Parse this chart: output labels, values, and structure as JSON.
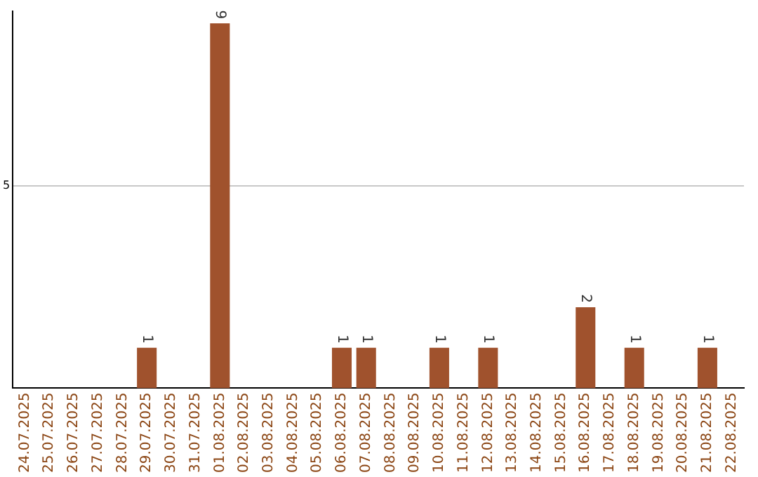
{
  "chart_data": {
    "type": "bar",
    "categories": [
      "24.07.2025",
      "25.07.2025",
      "26.07.2025",
      "27.07.2025",
      "28.07.2025",
      "29.07.2025",
      "30.07.2025",
      "31.07.2025",
      "01.08.2025",
      "02.08.2025",
      "03.08.2025",
      "04.08.2025",
      "05.08.2025",
      "06.08.2025",
      "07.08.2025",
      "08.08.2025",
      "09.08.2025",
      "10.08.2025",
      "11.08.2025",
      "12.08.2025",
      "13.08.2025",
      "14.08.2025",
      "15.08.2025",
      "16.08.2025",
      "17.08.2025",
      "18.08.2025",
      "19.08.2025",
      "20.08.2025",
      "21.08.2025",
      "22.08.2025"
    ],
    "values": [
      0,
      0,
      0,
      0,
      0,
      1,
      0,
      0,
      9,
      0,
      0,
      0,
      0,
      1,
      1,
      0,
      0,
      1,
      0,
      1,
      0,
      0,
      0,
      2,
      0,
      1,
      0,
      0,
      1,
      0
    ],
    "value_labels": [
      null,
      null,
      null,
      null,
      null,
      "1",
      null,
      null,
      "9",
      null,
      null,
      null,
      null,
      "1",
      "1",
      null,
      null,
      "1",
      null,
      "1",
      null,
      null,
      null,
      "2",
      null,
      "1",
      null,
      null,
      "1",
      null
    ],
    "color": "#a0522d",
    "ylim": [
      0,
      9.3
    ],
    "yticks": [
      5
    ],
    "grid": "y",
    "legend": false
  }
}
